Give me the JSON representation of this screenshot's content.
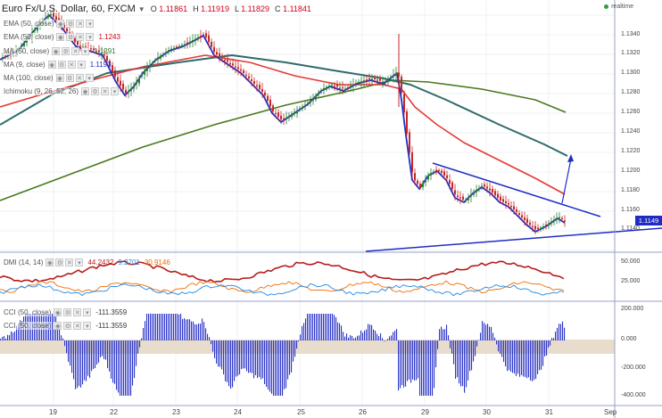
{
  "header": {
    "title": "Euro Fx/U.S. Dollar, 60, FXCM",
    "open_label": "O",
    "open": "1.11861",
    "high_label": "H",
    "high": "1.11919",
    "low_label": "L",
    "low": "1.11829",
    "close_label": "C",
    "close": "1.11841",
    "realtime": "realtime"
  },
  "indicators": [
    {
      "name": "EMA (50, close)",
      "value": "",
      "color": "#d0021b"
    },
    {
      "name": "EMA (50, close)",
      "value": "1.1243",
      "color": "#d0021b"
    },
    {
      "name": "MA (50, close)",
      "value": "1.1291",
      "color": "#2e7d32"
    },
    {
      "name": "MA (9, close)",
      "value": "1.1193",
      "color": "#1f2cc4"
    },
    {
      "name": "MA (100, close)",
      "value": "",
      "color": "#1f2cc4"
    },
    {
      "name": "Ichimoku (9, 26, 52, 26)",
      "value": "",
      "color": "#555555"
    }
  ],
  "dmi": {
    "name": "DMI (14, 14)",
    "adx": "44.2432",
    "plus": "9.2701",
    "minus": "30.9146",
    "adx_color": "#b71c1c",
    "plus_color": "#1e88e5",
    "minus_color": "#ef6c00"
  },
  "cci": [
    {
      "name": "CCI (50, close)",
      "value": "-111.3559"
    },
    {
      "name": "CCI (50, close)",
      "value": "-111.3559"
    }
  ],
  "price_axis": [
    "1.1340",
    "1.1320",
    "1.1300",
    "1.1280",
    "1.1260",
    "1.1240",
    "1.1220",
    "1.1200",
    "1.1180",
    "1.1160",
    "1.1140"
  ],
  "current_price": "1.1149",
  "dmi_axis": [
    "50.000",
    "25.000"
  ],
  "cci_axis": [
    "200.000",
    "0.000",
    "-200.000",
    "-400.000"
  ],
  "time_axis": [
    "19",
    "22",
    "23",
    "24",
    "25",
    "26",
    "29",
    "30",
    "31",
    "Sep"
  ],
  "colors": {
    "up": "#2e7d32",
    "down": "#c62828",
    "ma9": "#1f2cc4",
    "ema": "#e53935",
    "ma100": "#2e6b6b",
    "ma200": "#4a7a1e",
    "trend": "#1f2cc4",
    "cci_band": "#e8dccd"
  }
}
